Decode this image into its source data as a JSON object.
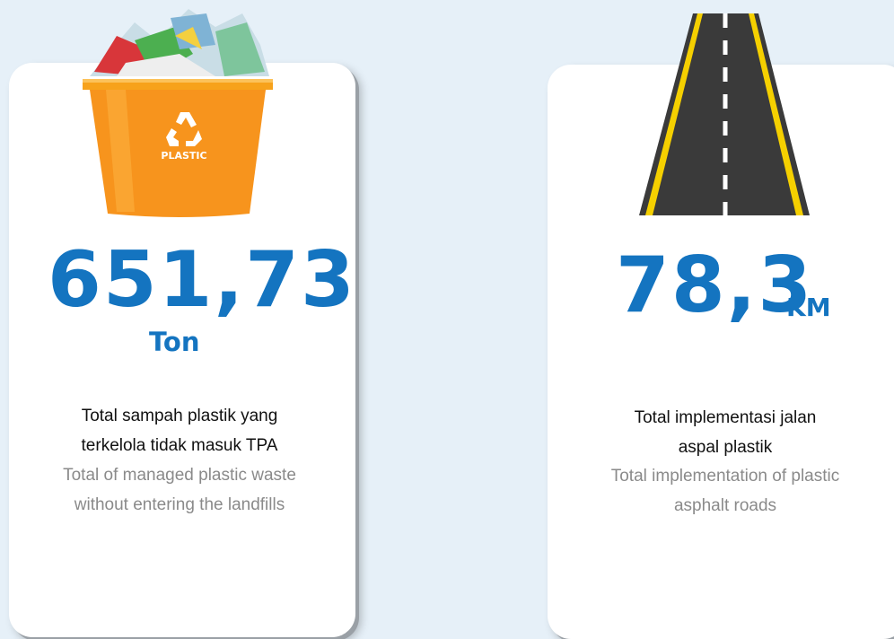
{
  "cards": [
    {
      "value": "651,73",
      "unit": "Ton",
      "icon_label": "PLASTIC",
      "description_id": [
        "Total sampah plastik yang",
        "terkelola tidak masuk TPA"
      ],
      "description_en": [
        "Total of managed plastic waste",
        "without entering the landfills"
      ]
    },
    {
      "value": "78,3",
      "unit": "KM",
      "description_id": [
        "Total implementasi jalan",
        "aspal plastik"
      ],
      "description_en": [
        "Total implementation of plastic",
        "asphalt roads"
      ]
    }
  ]
}
